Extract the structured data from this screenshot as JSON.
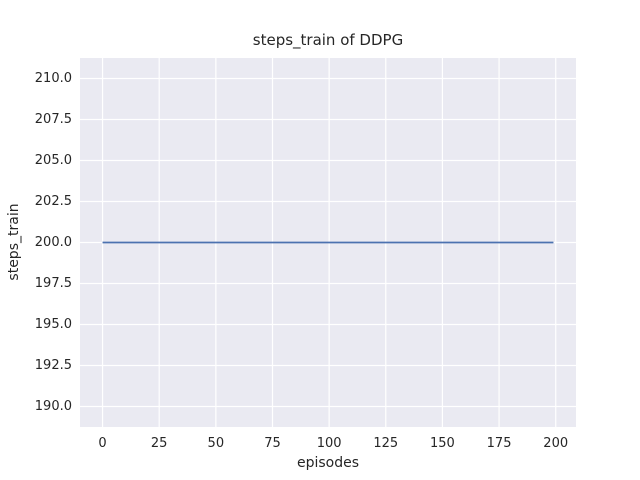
{
  "chart_data": {
    "type": "line",
    "title": "steps_train of DDPG",
    "xlabel": "episodes",
    "ylabel": "steps_train",
    "xlim": [
      -9.95,
      208.95
    ],
    "ylim": [
      188.75,
      211.25
    ],
    "xticks": [
      0,
      25,
      50,
      75,
      100,
      125,
      150,
      175,
      200
    ],
    "xtick_labels": [
      "0",
      "25",
      "50",
      "75",
      "100",
      "125",
      "150",
      "175",
      "200"
    ],
    "yticks": [
      190.0,
      192.5,
      195.0,
      197.5,
      200.0,
      202.5,
      205.0,
      207.5,
      210.0
    ],
    "ytick_labels": [
      "190.0",
      "192.5",
      "195.0",
      "197.5",
      "200.0",
      "202.5",
      "205.0",
      "207.5",
      "210.0"
    ],
    "grid": true,
    "legend": false,
    "series": [
      {
        "name": "steps_train",
        "x": [
          0,
          199
        ],
        "y": [
          200,
          200
        ],
        "note": "constant line: steps_train equals 200 for every episode from 0 to 199"
      }
    ],
    "style": {
      "line_color": "#4c72b0",
      "axes_background": "#eaeaf2",
      "grid_color": "#ffffff",
      "text_color": "#262626",
      "figure_background": "#ffffff"
    }
  }
}
